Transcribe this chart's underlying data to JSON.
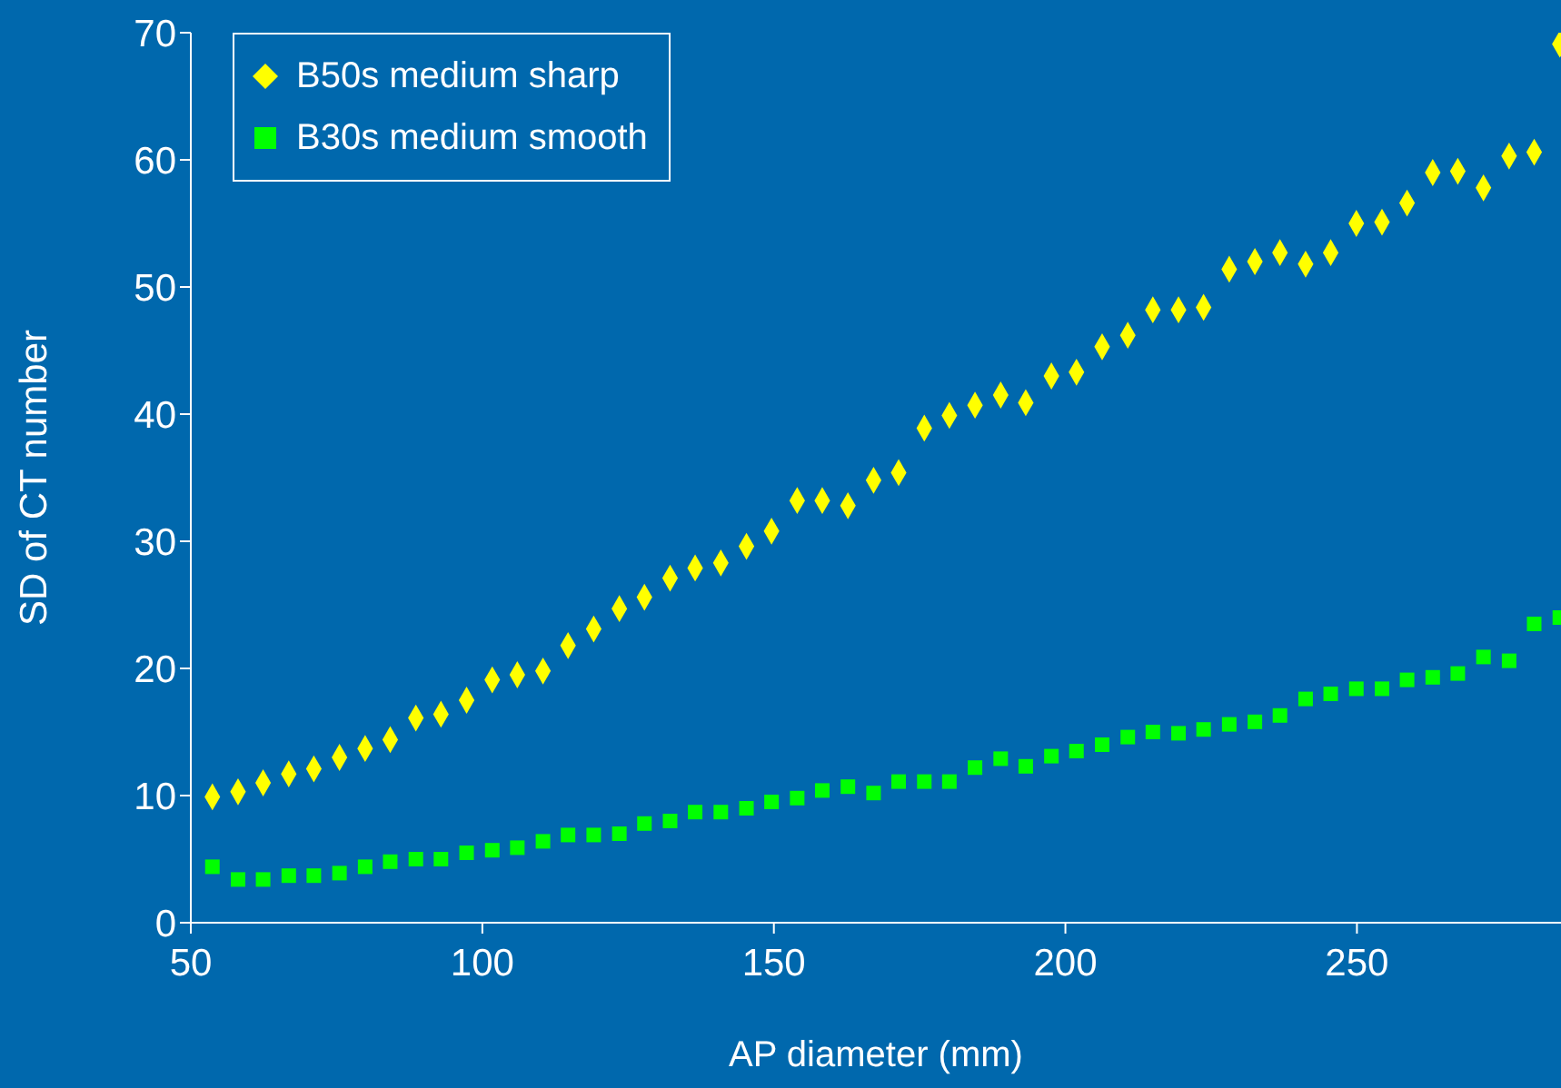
{
  "chart_data": {
    "type": "scatter",
    "xlabel": "AP diameter (mm)",
    "ylabel": "SD of CT number",
    "x": [
      53.7,
      58.1,
      62.4,
      66.8,
      71.1,
      75.5,
      79.9,
      84.2,
      88.6,
      92.9,
      97.3,
      101.7,
      106.0,
      110.4,
      114.7,
      119.1,
      123.5,
      127.8,
      132.2,
      136.5,
      140.9,
      145.3,
      149.6,
      154.0,
      158.3,
      162.7,
      167.1,
      171.4,
      175.8,
      180.1,
      184.5,
      188.9,
      193.2,
      197.6,
      201.9,
      206.3,
      210.7,
      215.0,
      219.4,
      223.7,
      228.1,
      232.5,
      236.8,
      241.2,
      245.5,
      249.9,
      254.3,
      258.6,
      263.0,
      267.3,
      271.7,
      276.1,
      280.4,
      284.8
    ],
    "series": [
      {
        "name": "B50s medium sharp",
        "color": "#ffff00",
        "marker": "diamond",
        "values": [
          9.9,
          10.3,
          11.0,
          11.7,
          12.1,
          13.0,
          13.7,
          14.4,
          16.1,
          16.4,
          17.5,
          19.1,
          19.5,
          19.8,
          21.8,
          23.1,
          24.7,
          25.6,
          27.1,
          27.9,
          28.3,
          29.6,
          30.8,
          33.2,
          33.2,
          32.8,
          34.8,
          35.4,
          38.9,
          39.9,
          40.7,
          41.5,
          40.9,
          43.0,
          43.3,
          45.3,
          46.2,
          48.2,
          48.2,
          48.4,
          51.4,
          52.0,
          52.7,
          51.8,
          52.7,
          55.0,
          55.1,
          56.6,
          59.0,
          59.1,
          57.8,
          60.3,
          60.6,
          69.1
        ]
      },
      {
        "name": "B30s medium smooth",
        "color": "#00ff00",
        "marker": "square",
        "values": [
          4.4,
          3.4,
          3.4,
          3.7,
          3.7,
          3.9,
          4.4,
          4.8,
          5.0,
          5.0,
          5.5,
          5.7,
          5.9,
          6.4,
          6.9,
          6.9,
          7.0,
          7.8,
          8.0,
          8.7,
          8.7,
          9.0,
          9.5,
          9.8,
          10.4,
          10.7,
          10.2,
          11.1,
          11.1,
          11.1,
          12.2,
          12.9,
          12.3,
          13.1,
          13.5,
          14.0,
          14.6,
          15.0,
          14.9,
          15.2,
          15.6,
          15.8,
          16.3,
          17.6,
          18.0,
          18.4,
          18.4,
          19.1,
          19.3,
          19.6,
          20.9,
          20.6,
          23.5,
          24.0
        ]
      }
    ],
    "xlim": [
      50,
      285
    ],
    "xticks": [
      50,
      100,
      150,
      200,
      250
    ],
    "ylim": [
      0,
      70
    ],
    "yticks": [
      0,
      10,
      20,
      30,
      40,
      50,
      60,
      70
    ],
    "grid": false,
    "legend": "top left"
  }
}
